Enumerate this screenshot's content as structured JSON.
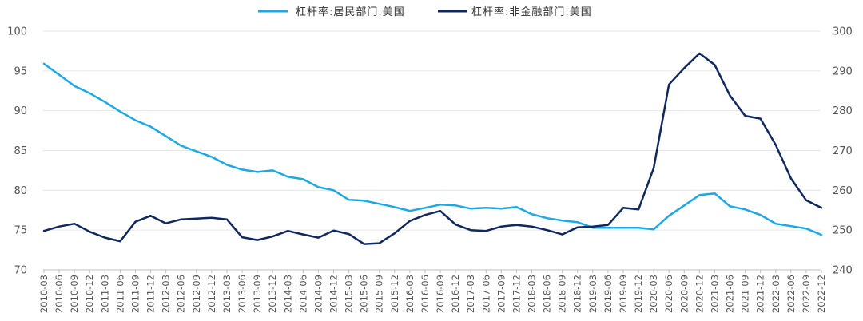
{
  "chart_data": {
    "type": "line",
    "title": "",
    "xlabel": "",
    "ylabel": "",
    "y2label": "",
    "grid": "horizontal",
    "legend_position": "top-center",
    "ylim": [
      70,
      100
    ],
    "y2lim": [
      240,
      300
    ],
    "yticks": [
      "70",
      "75",
      "80",
      "85",
      "90",
      "95",
      "100"
    ],
    "y2ticks": [
      "240",
      "250",
      "260",
      "270",
      "280",
      "290",
      "300"
    ],
    "x": [
      "2010-03",
      "2010-06",
      "2010-09",
      "2010-12",
      "2011-03",
      "2011-06",
      "2011-09",
      "2011-12",
      "2012-03",
      "2012-06",
      "2012-09",
      "2012-12",
      "2013-03",
      "2013-06",
      "2013-09",
      "2013-12",
      "2014-03",
      "2014-06",
      "2014-09",
      "2014-12",
      "2015-03",
      "2015-06",
      "2015-09",
      "2015-12",
      "2016-03",
      "2016-06",
      "2016-09",
      "2016-12",
      "2017-03",
      "2017-06",
      "2017-09",
      "2017-12",
      "2018-03",
      "2018-06",
      "2018-09",
      "2018-12",
      "2019-03",
      "2019-06",
      "2019-09",
      "2019-12",
      "2020-03",
      "2020-06",
      "2020-09",
      "2020-12",
      "2021-03",
      "2021-06",
      "2021-09",
      "2021-12",
      "2022-03",
      "2022-06",
      "2022-09",
      "2022-12"
    ],
    "series": [
      {
        "name": "杠杆率:居民部门:美国",
        "axis": "left",
        "color": "#1aa9e6",
        "values": [
          95.9,
          94.5,
          93.1,
          92.2,
          91.1,
          89.9,
          88.8,
          88.0,
          86.8,
          85.6,
          84.9,
          84.2,
          83.2,
          82.6,
          82.3,
          82.5,
          81.7,
          81.4,
          80.4,
          80.0,
          78.8,
          78.7,
          78.3,
          77.9,
          77.4,
          77.8,
          78.2,
          78.1,
          77.7,
          77.8,
          77.7,
          77.9,
          77.0,
          76.5,
          76.2,
          76.0,
          75.3,
          75.3,
          75.3,
          75.3,
          75.1,
          76.8,
          78.1,
          79.4,
          79.6,
          78.0,
          77.6,
          76.9,
          75.8,
          75.5,
          75.2,
          74.4
        ]
      },
      {
        "name": "杠杆率:非金融部门:美国",
        "axis": "right",
        "color": "#10285e",
        "values": [
          249.8,
          250.9,
          251.6,
          249.6,
          248.1,
          247.2,
          252.1,
          253.6,
          251.7,
          252.7,
          252.9,
          253.1,
          252.7,
          248.2,
          247.5,
          248.4,
          249.8,
          248.9,
          248.1,
          249.9,
          249.0,
          246.5,
          246.7,
          249.2,
          252.3,
          253.8,
          254.8,
          251.4,
          250.0,
          249.8,
          250.9,
          251.3,
          250.9,
          250.0,
          248.9,
          250.7,
          250.9,
          251.3,
          255.6,
          255.2,
          265.6,
          286.6,
          290.7,
          294.4,
          291.5,
          283.8,
          278.7,
          278.0,
          271.4,
          263.0,
          257.5,
          255.6
        ]
      }
    ]
  }
}
